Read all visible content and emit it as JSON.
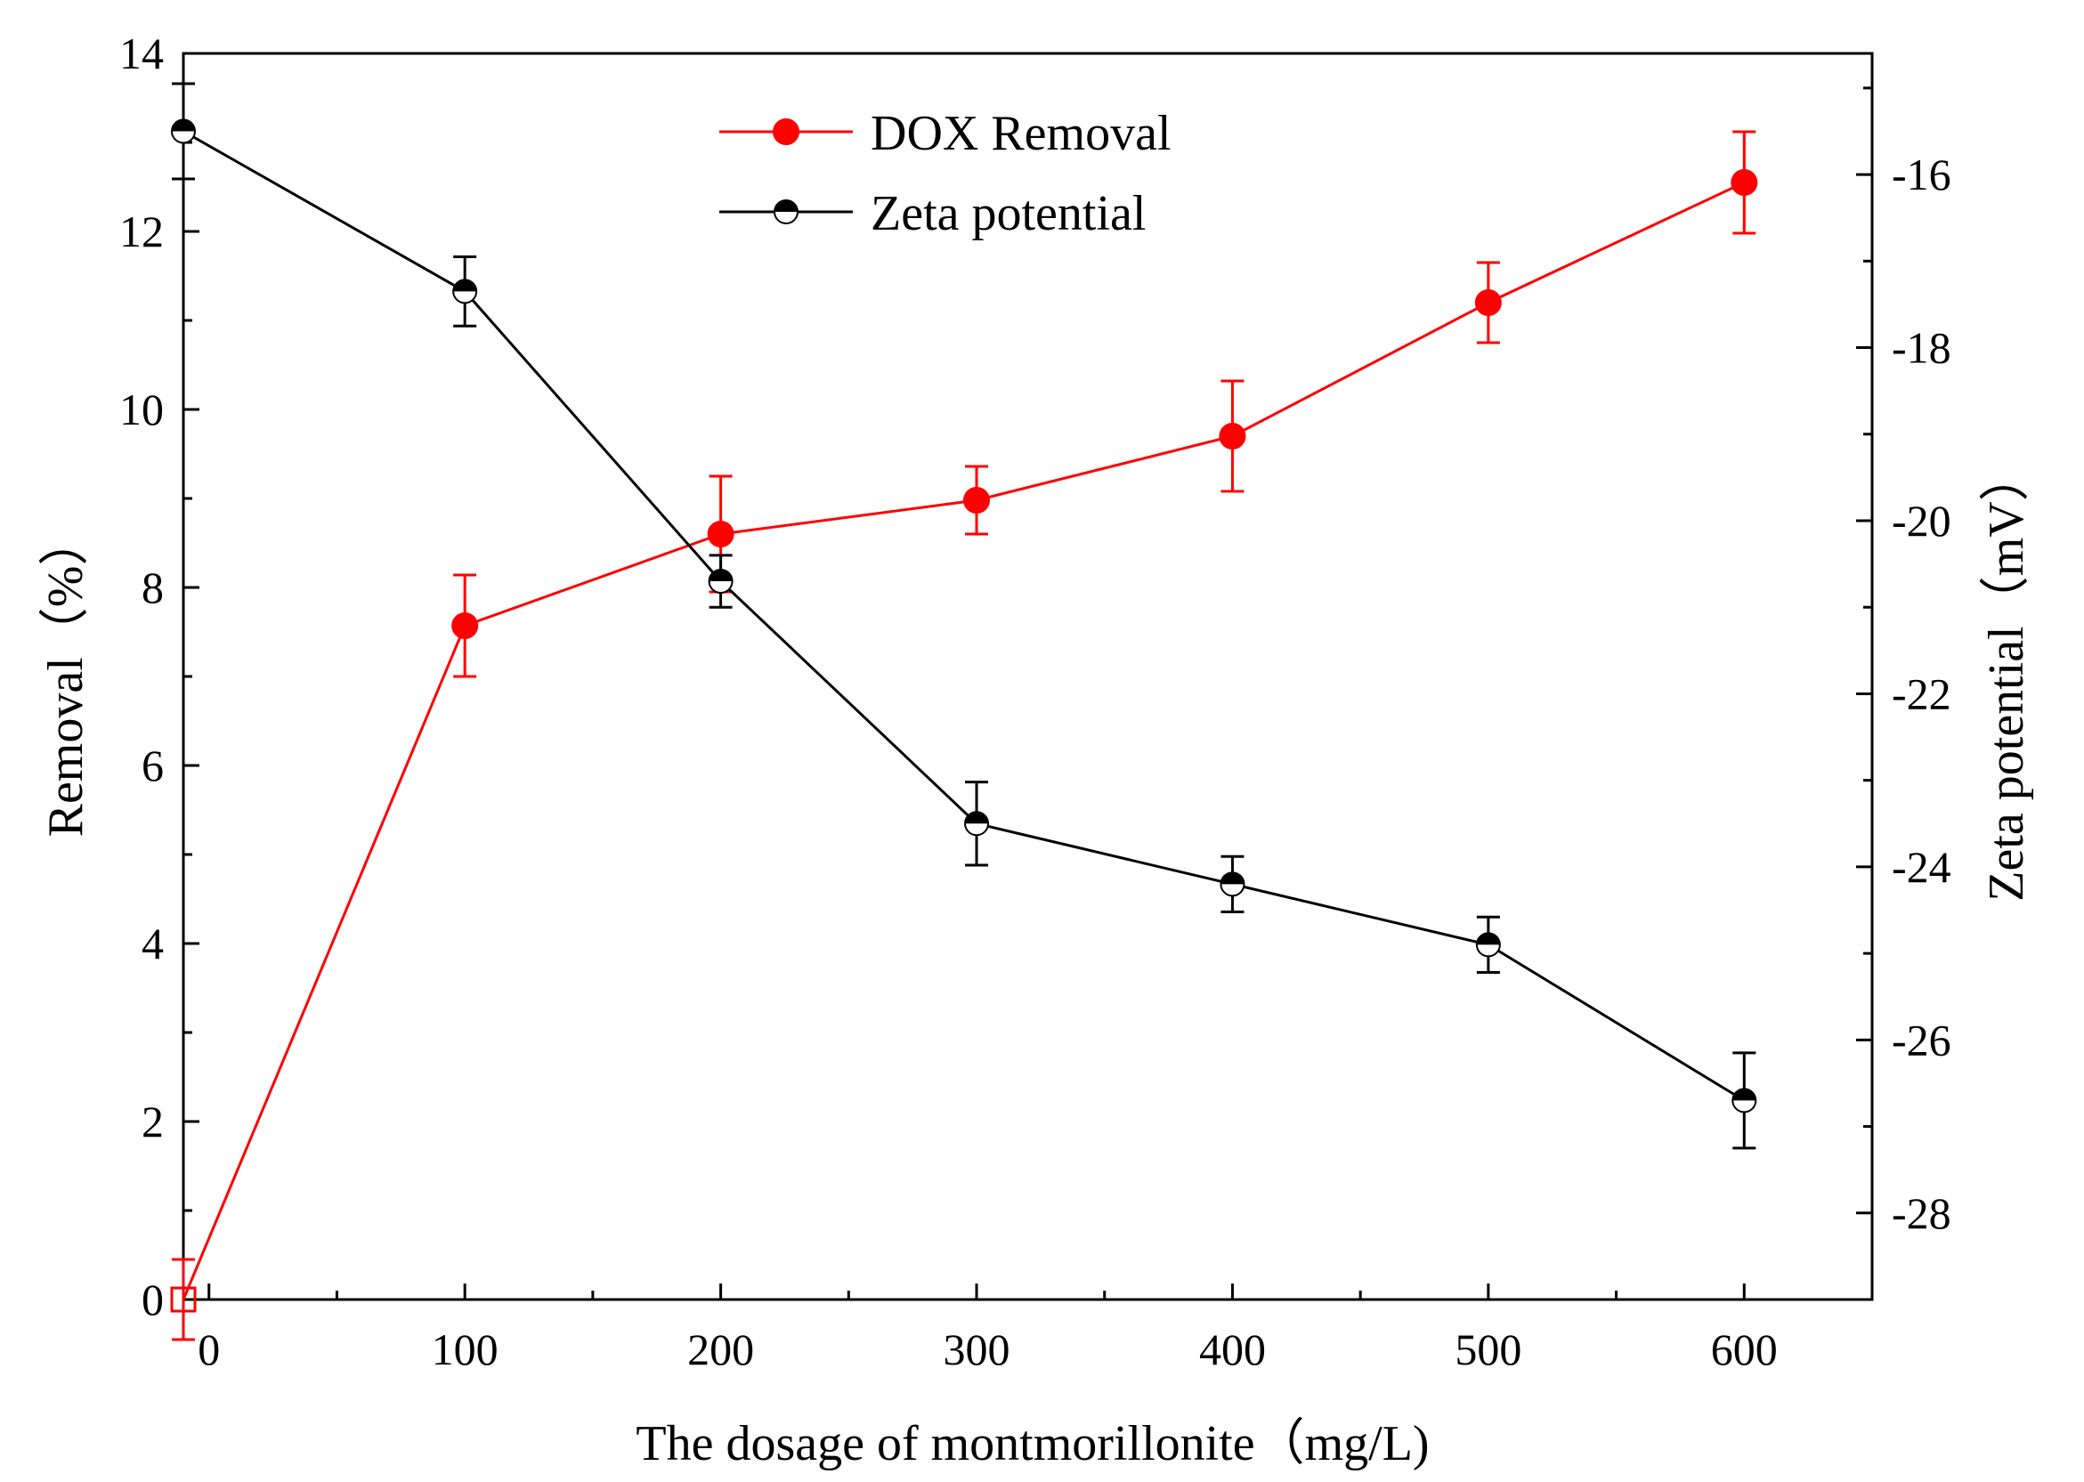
{
  "chart_data": {
    "type": "line",
    "title": "",
    "xlabel": "The dosage of montmorillonite（mg/L)",
    "ylabel_left": "Removal（%）",
    "ylabel_right": "Zeta potential（mV）",
    "x": [
      -10,
      100,
      200,
      300,
      400,
      500,
      600
    ],
    "xlim": [
      -10,
      650
    ],
    "xticks": [
      "0",
      "100",
      "200",
      "300",
      "400",
      "500",
      "600"
    ],
    "ylim_left": [
      0,
      14
    ],
    "yticks_left": [
      "0",
      "2",
      "4",
      "6",
      "8",
      "10",
      "12",
      "14"
    ],
    "ylim_right": [
      -29,
      -14.6
    ],
    "yticks_right": [
      "-16",
      "-18",
      "-20",
      "-22",
      "-24",
      "-26",
      "-28"
    ],
    "legend_position": "top-center",
    "series": [
      {
        "name": "DOX Removal",
        "axis": "left",
        "color": "#ff0000",
        "marker": "filled-circle",
        "values": [
          0,
          7.57,
          8.6,
          8.98,
          9.7,
          11.2,
          12.55
        ],
        "errors": [
          0.45,
          0.57,
          0.65,
          0.38,
          0.62,
          0.45,
          0.57
        ]
      },
      {
        "name": "Zeta potential",
        "axis": "right",
        "color": "#000000",
        "marker": "half-filled-circle",
        "values": [
          -15.5,
          -17.35,
          -20.7,
          -23.5,
          -24.2,
          -24.9,
          -26.7
        ],
        "errors": [
          0.55,
          0.4,
          0.3,
          0.48,
          0.32,
          0.32,
          0.55
        ]
      }
    ]
  }
}
